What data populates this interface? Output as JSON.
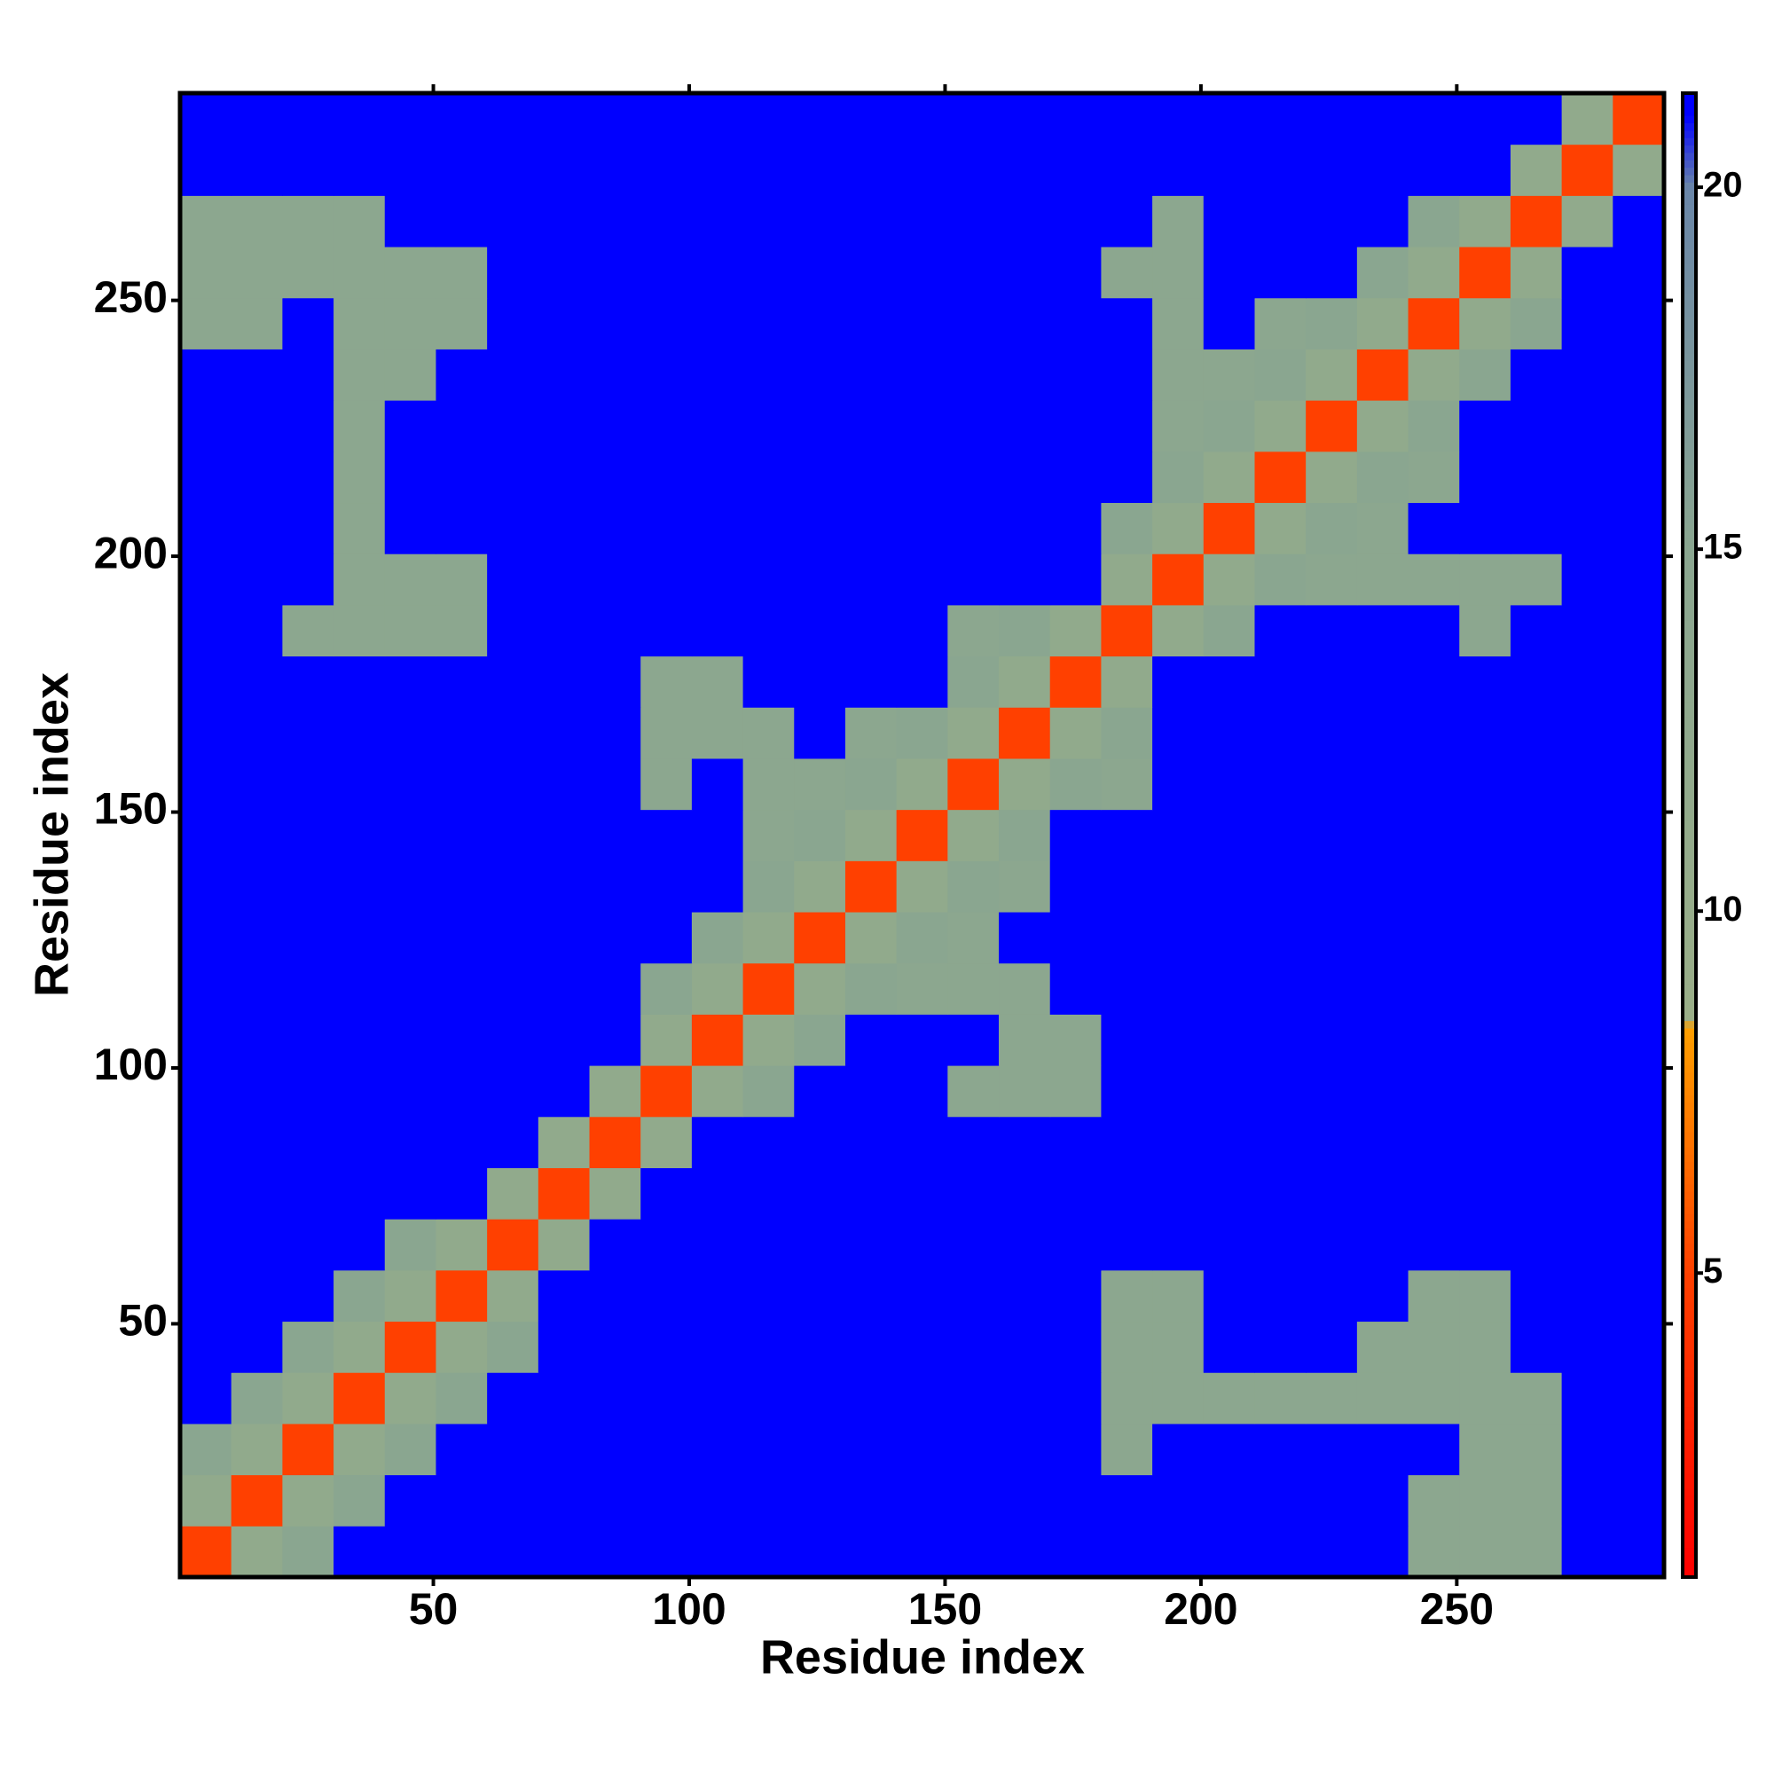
{
  "chart_data": {
    "type": "heatmap",
    "xlabel": "Residue index",
    "ylabel": "Residue index",
    "xlim": [
      0.5,
      290.5
    ],
    "ylim": [
      0.5,
      290.5
    ],
    "xticks": [
      50,
      100,
      150,
      200,
      250
    ],
    "yticks": [
      50,
      100,
      150,
      200,
      250
    ],
    "xbins": [
      0.5,
      10.5,
      20.5,
      30.5,
      40.5,
      50.5,
      60.5,
      70.5,
      80.5,
      90.5,
      100.5,
      110.5,
      120.5,
      130.5,
      140.5,
      150.5,
      160.5,
      170.5,
      180.5,
      190.5,
      200.5,
      210.5,
      220.5,
      230.5,
      240.5,
      250.5,
      260.5,
      270.5,
      280.5,
      290.5
    ],
    "ybins": [
      0.5,
      10.5,
      20.5,
      30.5,
      40.5,
      50.5,
      60.5,
      70.5,
      80.5,
      90.5,
      100.5,
      110.5,
      120.5,
      130.5,
      140.5,
      150.5,
      160.5,
      170.5,
      180.5,
      190.5,
      200.5,
      210.5,
      220.5,
      230.5,
      240.5,
      250.5,
      260.5,
      270.5,
      280.5,
      290.5
    ],
    "zlim": [
      0.8,
      21.3
    ],
    "zticks": [
      5,
      10,
      15,
      20
    ],
    "colorscale": [
      {
        "value": 0.8,
        "color": "#ff0000"
      },
      {
        "value": 5,
        "color": "#ff4000"
      },
      {
        "value": 8.4,
        "color": "#ffa000"
      },
      {
        "value": 8.5,
        "color": "#9aae88"
      },
      {
        "value": 15,
        "color": "#8aa690"
      },
      {
        "value": 20,
        "color": "#6a86a8"
      },
      {
        "value": 21,
        "color": "#0000ff"
      },
      {
        "value": 21.3,
        "color": "#0000ff"
      }
    ],
    "z": [
      [
        5,
        12,
        15,
        21,
        21,
        21,
        21,
        21,
        21,
        21,
        21,
        21,
        21,
        21,
        21,
        21,
        21,
        21,
        21,
        21,
        21,
        21,
        21,
        21,
        14,
        14,
        14,
        21,
        21
      ],
      [
        12,
        5,
        12,
        15,
        21,
        21,
        21,
        21,
        21,
        21,
        21,
        21,
        21,
        21,
        21,
        21,
        21,
        21,
        21,
        21,
        21,
        21,
        21,
        21,
        14,
        14,
        14,
        21,
        21
      ],
      [
        15,
        12,
        5,
        12,
        15,
        21,
        21,
        21,
        21,
        21,
        21,
        21,
        21,
        21,
        21,
        21,
        21,
        21,
        14,
        21,
        21,
        21,
        21,
        21,
        21,
        14,
        14,
        21,
        21
      ],
      [
        21,
        15,
        12,
        5,
        12,
        15,
        21,
        21,
        21,
        21,
        21,
        21,
        21,
        21,
        21,
        21,
        21,
        21,
        14,
        14,
        14,
        14,
        14,
        14,
        14,
        14,
        14,
        21,
        21
      ],
      [
        21,
        21,
        15,
        12,
        5,
        12,
        15,
        21,
        21,
        21,
        21,
        21,
        21,
        21,
        21,
        21,
        21,
        21,
        14,
        14,
        21,
        21,
        21,
        14,
        14,
        14,
        21,
        21,
        21
      ],
      [
        21,
        21,
        21,
        15,
        12,
        5,
        12,
        21,
        21,
        21,
        21,
        21,
        21,
        21,
        21,
        21,
        21,
        21,
        14,
        14,
        21,
        21,
        21,
        21,
        14,
        14,
        21,
        21,
        21
      ],
      [
        21,
        21,
        21,
        21,
        15,
        12,
        5,
        12,
        21,
        21,
        21,
        21,
        21,
        21,
        21,
        21,
        21,
        21,
        21,
        21,
        21,
        21,
        21,
        21,
        21,
        21,
        21,
        21,
        21
      ],
      [
        21,
        21,
        21,
        21,
        21,
        21,
        12,
        5,
        12,
        21,
        21,
        21,
        21,
        21,
        21,
        21,
        21,
        21,
        21,
        21,
        21,
        21,
        21,
        21,
        21,
        21,
        21,
        21,
        21
      ],
      [
        21,
        21,
        21,
        21,
        21,
        21,
        21,
        12,
        5,
        12,
        21,
        21,
        21,
        21,
        21,
        21,
        21,
        21,
        21,
        21,
        21,
        21,
        21,
        21,
        21,
        21,
        21,
        21,
        21
      ],
      [
        21,
        21,
        21,
        21,
        21,
        21,
        21,
        21,
        12,
        5,
        12,
        15,
        21,
        21,
        21,
        14,
        14,
        14,
        21,
        21,
        21,
        21,
        21,
        21,
        21,
        21,
        21,
        21,
        21
      ],
      [
        21,
        21,
        21,
        21,
        21,
        21,
        21,
        21,
        21,
        12,
        5,
        12,
        15,
        21,
        21,
        21,
        14,
        14,
        21,
        21,
        21,
        21,
        21,
        21,
        21,
        21,
        21,
        21,
        21
      ],
      [
        21,
        21,
        21,
        21,
        21,
        21,
        21,
        21,
        21,
        15,
        12,
        5,
        12,
        15,
        14,
        14,
        14,
        21,
        21,
        21,
        21,
        21,
        21,
        21,
        21,
        21,
        21,
        21,
        21
      ],
      [
        21,
        21,
        21,
        21,
        21,
        21,
        21,
        21,
        21,
        21,
        15,
        12,
        5,
        12,
        15,
        14,
        21,
        21,
        21,
        21,
        21,
        21,
        21,
        21,
        21,
        21,
        21,
        21,
        21
      ],
      [
        21,
        21,
        21,
        21,
        21,
        21,
        21,
        21,
        21,
        21,
        21,
        15,
        12,
        5,
        12,
        15,
        14,
        21,
        21,
        21,
        21,
        21,
        21,
        21,
        21,
        21,
        21,
        21,
        21
      ],
      [
        21,
        21,
        21,
        21,
        21,
        21,
        21,
        21,
        21,
        21,
        21,
        14,
        15,
        12,
        5,
        12,
        15,
        21,
        21,
        21,
        21,
        21,
        21,
        21,
        21,
        21,
        21,
        21,
        21
      ],
      [
        21,
        21,
        21,
        21,
        21,
        21,
        21,
        21,
        21,
        14,
        21,
        14,
        14,
        15,
        12,
        5,
        12,
        15,
        14,
        21,
        21,
        21,
        21,
        21,
        21,
        21,
        21,
        21,
        21
      ],
      [
        21,
        21,
        21,
        21,
        21,
        21,
        21,
        21,
        21,
        14,
        14,
        14,
        21,
        14,
        15,
        12,
        5,
        12,
        15,
        21,
        21,
        21,
        21,
        21,
        21,
        21,
        21,
        21,
        21
      ],
      [
        21,
        21,
        21,
        21,
        21,
        21,
        21,
        21,
        21,
        14,
        14,
        21,
        21,
        21,
        21,
        15,
        12,
        5,
        12,
        21,
        21,
        21,
        21,
        21,
        21,
        21,
        21,
        21,
        21
      ],
      [
        21,
        21,
        14,
        14,
        14,
        14,
        21,
        21,
        21,
        21,
        21,
        21,
        21,
        21,
        21,
        14,
        15,
        12,
        5,
        12,
        15,
        21,
        21,
        21,
        21,
        14,
        21,
        21,
        21
      ],
      [
        21,
        21,
        21,
        14,
        14,
        14,
        21,
        21,
        21,
        21,
        21,
        21,
        21,
        21,
        21,
        21,
        21,
        21,
        12,
        5,
        12,
        15,
        14,
        14,
        14,
        14,
        14,
        21,
        21
      ],
      [
        21,
        21,
        21,
        14,
        21,
        21,
        21,
        21,
        21,
        21,
        21,
        21,
        21,
        21,
        21,
        21,
        21,
        21,
        15,
        12,
        5,
        12,
        15,
        14,
        21,
        21,
        21,
        21,
        21
      ],
      [
        21,
        21,
        21,
        14,
        21,
        21,
        21,
        21,
        21,
        21,
        21,
        21,
        21,
        21,
        21,
        21,
        21,
        21,
        21,
        15,
        12,
        5,
        12,
        15,
        14,
        21,
        21,
        21,
        21
      ],
      [
        21,
        21,
        21,
        14,
        21,
        21,
        21,
        21,
        21,
        21,
        21,
        21,
        21,
        21,
        21,
        21,
        21,
        21,
        21,
        14,
        15,
        12,
        5,
        12,
        15,
        21,
        21,
        21,
        21
      ],
      [
        21,
        21,
        21,
        14,
        14,
        21,
        21,
        21,
        21,
        21,
        21,
        21,
        21,
        21,
        21,
        21,
        21,
        21,
        21,
        14,
        14,
        15,
        12,
        5,
        12,
        15,
        21,
        21,
        21
      ],
      [
        14,
        14,
        21,
        14,
        14,
        14,
        21,
        21,
        21,
        21,
        21,
        21,
        21,
        21,
        21,
        21,
        21,
        21,
        21,
        14,
        21,
        14,
        15,
        12,
        5,
        12,
        15,
        21,
        21
      ],
      [
        14,
        14,
        14,
        14,
        14,
        14,
        21,
        21,
        21,
        21,
        21,
        21,
        21,
        21,
        21,
        21,
        21,
        21,
        14,
        14,
        21,
        21,
        21,
        15,
        12,
        5,
        12,
        21,
        21
      ],
      [
        14,
        14,
        14,
        14,
        21,
        21,
        21,
        21,
        21,
        21,
        21,
        21,
        21,
        21,
        21,
        21,
        21,
        21,
        21,
        14,
        21,
        21,
        21,
        21,
        15,
        12,
        5,
        12,
        21
      ],
      [
        21,
        21,
        21,
        21,
        21,
        21,
        21,
        21,
        21,
        21,
        21,
        21,
        21,
        21,
        21,
        21,
        21,
        21,
        21,
        21,
        21,
        21,
        21,
        21,
        21,
        21,
        12,
        5,
        12
      ],
      [
        21,
        21,
        21,
        21,
        21,
        21,
        21,
        21,
        21,
        21,
        21,
        21,
        21,
        21,
        21,
        21,
        21,
        21,
        21,
        21,
        21,
        21,
        21,
        21,
        21,
        21,
        21,
        12,
        5
      ]
    ]
  }
}
